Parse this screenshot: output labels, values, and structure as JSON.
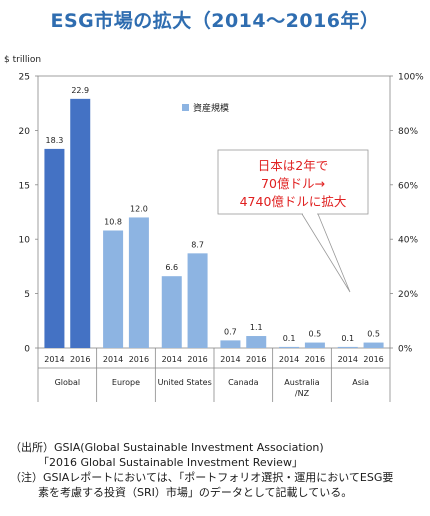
{
  "title": "ESG市場の拡大（2014～2016年）",
  "chart_data": {
    "type": "bar",
    "ylabel_left": "$ trillion",
    "ylim": [
      0,
      25
    ],
    "y_ticks": [
      "0",
      "5",
      "10",
      "15",
      "20",
      "25"
    ],
    "y2lim": [
      0,
      100
    ],
    "y2_ticks": [
      "0%",
      "20%",
      "40%",
      "60%",
      "80%",
      "100%"
    ],
    "legend": "資産規模",
    "legend_position": "top-center",
    "colors": {
      "year2014_global": "#4472c4",
      "year2016_global": "#4472c4",
      "year2014": "#8db4e2",
      "year2016": "#8db4e2"
    },
    "groups": [
      {
        "region": "Global",
        "bars": [
          {
            "year": "2014",
            "value": 18.3,
            "label": "18.3"
          },
          {
            "year": "2016",
            "value": 22.9,
            "label": "22.9"
          }
        ]
      },
      {
        "region": "Europe",
        "bars": [
          {
            "year": "2014",
            "value": 10.8,
            "label": "10.8"
          },
          {
            "year": "2016",
            "value": 12.0,
            "label": "12.0"
          }
        ]
      },
      {
        "region": "United States",
        "bars": [
          {
            "year": "2014",
            "value": 6.6,
            "label": "6.6"
          },
          {
            "year": "2016",
            "value": 8.7,
            "label": "8.7"
          }
        ]
      },
      {
        "region": "Canada",
        "bars": [
          {
            "year": "2014",
            "value": 0.7,
            "label": "0.7"
          },
          {
            "year": "2016",
            "value": 1.1,
            "label": "1.1"
          }
        ]
      },
      {
        "region_lines": [
          "Australia",
          "/NZ"
        ],
        "bars": [
          {
            "year": "2014",
            "value": 0.1,
            "label": "0.1"
          },
          {
            "year": "2016",
            "value": 0.5,
            "label": "0.5"
          }
        ]
      },
      {
        "region": "Asia",
        "bars": [
          {
            "year": "2014",
            "value": 0.1,
            "label": "0.1"
          },
          {
            "year": "2016",
            "value": 0.5,
            "label": "0.5"
          }
        ]
      }
    ],
    "callout": [
      "日本は2年で",
      "70億ドル→",
      "4740億ドルに拡大"
    ]
  },
  "notes": {
    "line1": "（出所）GSIA(Global Sustainable Investment Association)",
    "line2": "「2016 Global Sustainable Investment Review」",
    "line3": "（注）GSIAレポートにおいては、「ポートフォリオ選択・運用においてESG要",
    "line4": "素を考慮する投資（SRI）市場」のデータとして記載している。"
  }
}
